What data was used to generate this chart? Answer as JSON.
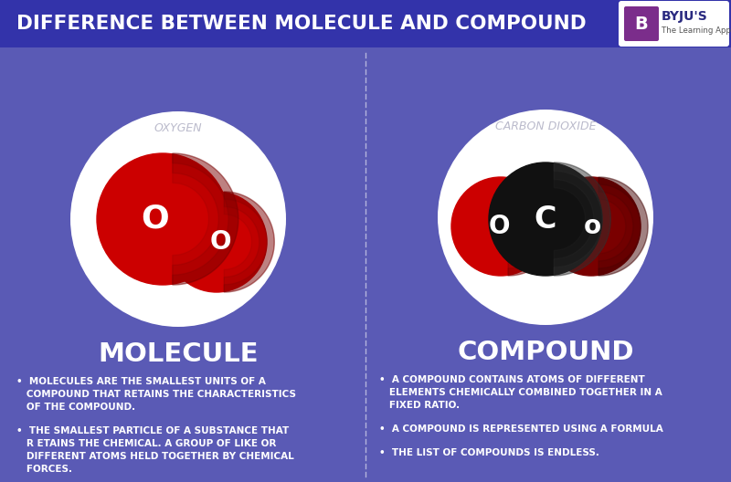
{
  "title": "DIFFERENCE BETWEEN MOLECULE AND COMPOUND",
  "main_bg": "#5a5ab5",
  "header_bg": "#3333aa",
  "molecule_label": "MOLECULE",
  "compound_label": "COMPOUND",
  "oxygen_label": "OXYGEN",
  "co2_label": "CARBON DIOXIDE",
  "molecule_bullets": [
    "•  MOLECULES ARE THE SMALLEST UNITS OF A\n   COMPOUND THAT RETAINS THE CHARACTERISTICS\n   OF THE COMPOUND.",
    "•  THE SMALLEST PARTICLE OF A SUBSTANCE THAT\n   R ETAINS THE CHEMICAL. A GROUP OF LIKE OR\n   DIFFERENT ATOMS HELD TOGETHER BY CHEMICAL\n   FORCES."
  ],
  "compound_bullets": [
    "•  A COMPOUND CONTAINS ATOMS OF DIFFERENT\n   ELEMENTS CHEMICALLY COMBINED TOGETHER IN A\n   FIXED RATIO.",
    "•  A COMPOUND IS REPRESENTED USING A FORMULA",
    "•  THE LIST OF COMPOUNDS IS ENDLESS."
  ],
  "white": "#ffffff",
  "red": "#cc0000",
  "dark_red": "#7a0000",
  "black": "#111111",
  "gray_label": "#bbbbcc"
}
